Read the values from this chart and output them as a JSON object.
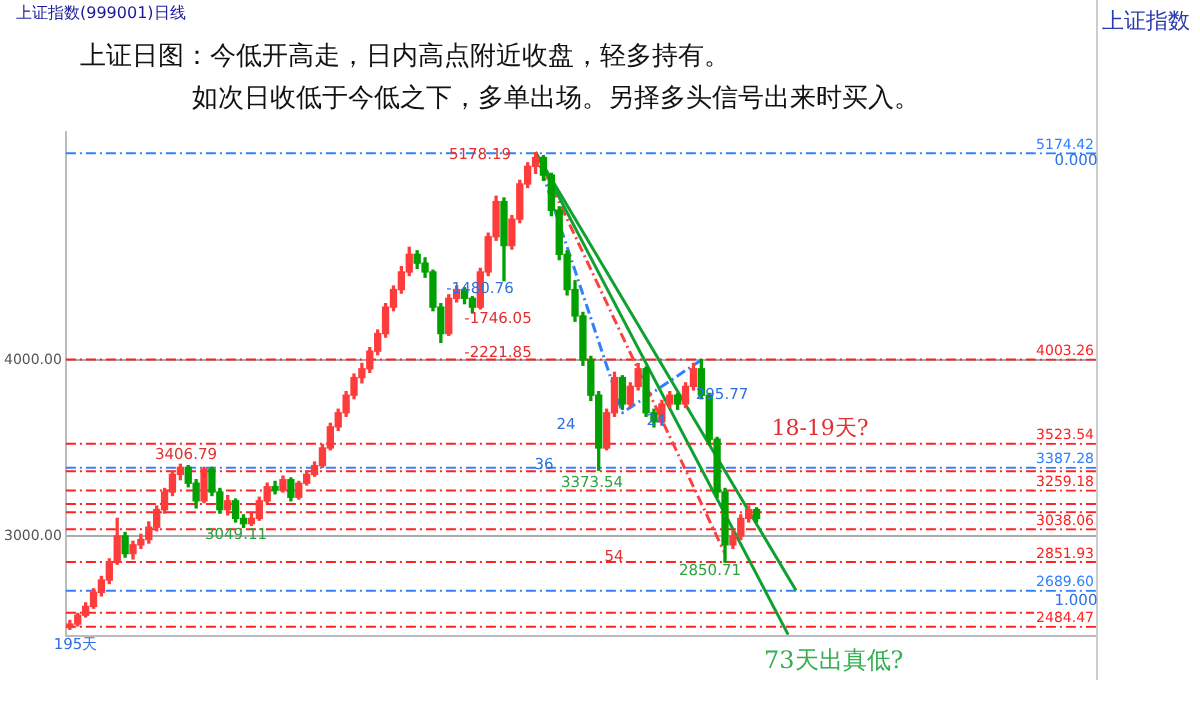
{
  "chart_data": {
    "type": "candlestick",
    "title": "上证日图：今低开高走，日内高点附近收盘，轻多持有。",
    "subtitle": "如次日收低于今低之下，多单出场。另择多头信号出来时买入。",
    "categories": [
      null,
      null,
      null,
      null,
      null,
      null,
      null,
      null,
      null,
      null,
      null,
      null,
      null,
      null,
      null,
      null,
      null,
      null,
      null,
      null,
      null,
      null,
      null,
      null,
      null,
      null,
      null,
      null,
      null,
      null,
      null,
      null,
      null,
      null,
      null,
      null,
      null,
      null,
      null,
      null,
      null,
      null,
      null,
      null,
      null,
      null,
      null,
      null,
      null,
      null,
      null,
      null,
      null,
      null,
      null,
      null,
      null,
      null,
      null,
      null,
      null,
      null,
      null,
      null,
      null,
      null,
      null,
      null,
      null,
      null,
      null,
      null,
      null,
      null,
      null,
      null,
      null,
      null,
      null,
      null,
      null,
      null,
      null,
      null,
      null,
      null,
      null,
      null,
      null,
      null,
      null,
      null,
      null
    ],
    "ohlc": [
      [
        2480,
        2520,
        2470,
        2500
      ],
      [
        2500,
        2560,
        2490,
        2550
      ],
      [
        2550,
        2620,
        2540,
        2600
      ],
      [
        2600,
        2700,
        2590,
        2680
      ],
      [
        2680,
        2770,
        2660,
        2750
      ],
      [
        2750,
        2870,
        2730,
        2850
      ],
      [
        2850,
        3100,
        2840,
        3000
      ],
      [
        3000,
        3020,
        2880,
        2900
      ],
      [
        2900,
        2970,
        2870,
        2950
      ],
      [
        2950,
        3010,
        2930,
        2980
      ],
      [
        2980,
        3080,
        2960,
        3050
      ],
      [
        3050,
        3170,
        3030,
        3150
      ],
      [
        3150,
        3270,
        3130,
        3250
      ],
      [
        3250,
        3370,
        3230,
        3350
      ],
      [
        3350,
        3407,
        3320,
        3390
      ],
      [
        3390,
        3400,
        3280,
        3300
      ],
      [
        3300,
        3320,
        3160,
        3200
      ],
      [
        3200,
        3390,
        3190,
        3380
      ],
      [
        3380,
        3390,
        3230,
        3250
      ],
      [
        3250,
        3270,
        3130,
        3150
      ],
      [
        3150,
        3230,
        3120,
        3200
      ],
      [
        3200,
        3210,
        3080,
        3100
      ],
      [
        3100,
        3120,
        3049,
        3070
      ],
      [
        3070,
        3130,
        3060,
        3100
      ],
      [
        3100,
        3220,
        3090,
        3200
      ],
      [
        3200,
        3300,
        3190,
        3280
      ],
      [
        3280,
        3310,
        3240,
        3260
      ],
      [
        3260,
        3340,
        3250,
        3320
      ],
      [
        3320,
        3330,
        3200,
        3220
      ],
      [
        3220,
        3310,
        3210,
        3300
      ],
      [
        3300,
        3370,
        3290,
        3350
      ],
      [
        3350,
        3420,
        3340,
        3400
      ],
      [
        3400,
        3520,
        3390,
        3500
      ],
      [
        3500,
        3640,
        3490,
        3620
      ],
      [
        3620,
        3720,
        3600,
        3700
      ],
      [
        3700,
        3820,
        3680,
        3800
      ],
      [
        3800,
        3920,
        3780,
        3900
      ],
      [
        3900,
        3980,
        3870,
        3950
      ],
      [
        3950,
        4070,
        3930,
        4050
      ],
      [
        4050,
        4170,
        4030,
        4150
      ],
      [
        4150,
        4320,
        4130,
        4300
      ],
      [
        4300,
        4420,
        4280,
        4400
      ],
      [
        4400,
        4530,
        4380,
        4500
      ],
      [
        4500,
        4640,
        4480,
        4600
      ],
      [
        4600,
        4620,
        4520,
        4550
      ],
      [
        4550,
        4580,
        4470,
        4500
      ],
      [
        4500,
        4510,
        4280,
        4300
      ],
      [
        4300,
        4320,
        4100,
        4150
      ],
      [
        4150,
        4370,
        4140,
        4350
      ],
      [
        4350,
        4420,
        4330,
        4400
      ],
      [
        4400,
        4410,
        4320,
        4350
      ],
      [
        4350,
        4360,
        4270,
        4300
      ],
      [
        4300,
        4520,
        4290,
        4500
      ],
      [
        4500,
        4720,
        4480,
        4700
      ],
      [
        4700,
        4930,
        4680,
        4900
      ],
      [
        4900,
        4920,
        4450,
        4650
      ],
      [
        4650,
        4820,
        4630,
        4800
      ],
      [
        4800,
        5020,
        4780,
        5000
      ],
      [
        5000,
        5120,
        4980,
        5100
      ],
      [
        5100,
        5178,
        5060,
        5150
      ],
      [
        5150,
        5160,
        5020,
        5050
      ],
      [
        5050,
        5060,
        4820,
        4850
      ],
      [
        4850,
        4870,
        4570,
        4600
      ],
      [
        4600,
        4620,
        4370,
        4400
      ],
      [
        4400,
        4450,
        4220,
        4250
      ],
      [
        4250,
        4270,
        3970,
        4000
      ],
      [
        4000,
        4020,
        3770,
        3800
      ],
      [
        3800,
        3820,
        3374,
        3500
      ],
      [
        3500,
        3720,
        3490,
        3700
      ],
      [
        3700,
        3930,
        3680,
        3900
      ],
      [
        3900,
        3910,
        3720,
        3750
      ],
      [
        3750,
        3870,
        3730,
        3850
      ],
      [
        3850,
        3980,
        3830,
        3950
      ],
      [
        3950,
        3960,
        3680,
        3700
      ],
      [
        3700,
        3720,
        3620,
        3650
      ],
      [
        3650,
        3770,
        3630,
        3750
      ],
      [
        3750,
        3820,
        3730,
        3800
      ],
      [
        3800,
        3810,
        3720,
        3750
      ],
      [
        3750,
        3870,
        3730,
        3850
      ],
      [
        3850,
        3980,
        3830,
        3950
      ],
      [
        3950,
        4003,
        3780,
        3800
      ],
      [
        3800,
        3810,
        3520,
        3550
      ],
      [
        3550,
        3560,
        3220,
        3250
      ],
      [
        3250,
        3270,
        2851,
        2950
      ],
      [
        2950,
        3030,
        2930,
        3000
      ],
      [
        3000,
        3120,
        2980,
        3100
      ],
      [
        3100,
        3170,
        3080,
        3150
      ],
      [
        3150,
        3160,
        3080,
        3100
      ],
      null,
      null,
      null,
      null,
      null
    ],
    "colors": [
      "#ff3c3c",
      "#ff3c3c",
      "#ff3c3c",
      "#ff3c3c",
      "#ff3c3c",
      "#ff3c3c",
      "#ff3c3c",
      "#00a000",
      "#ff3c3c",
      "#ff3c3c",
      "#ff3c3c",
      "#ff3c3c",
      "#ff3c3c",
      "#ff3c3c",
      "#ff3c3c",
      "#00a000",
      "#00a000",
      "#ff3c3c",
      "#00a000",
      "#00a000",
      "#ff3c3c",
      "#00a000",
      "#00a000",
      "#ff3c3c",
      "#ff3c3c",
      "#ff3c3c",
      "#00a000",
      "#ff3c3c",
      "#00a000",
      "#ff3c3c",
      "#ff3c3c",
      "#ff3c3c",
      "#ff3c3c",
      "#ff3c3c",
      "#ff3c3c",
      "#ff3c3c",
      "#ff3c3c",
      "#ff3c3c",
      "#ff3c3c",
      "#ff3c3c",
      "#ff3c3c",
      "#ff3c3c",
      "#ff3c3c",
      "#ff3c3c",
      "#00a000",
      "#00a000",
      "#00a000",
      "#00a000",
      "#ff3c3c",
      "#ff3c3c",
      "#00a000",
      "#00a000",
      "#ff3c3c",
      "#ff3c3c",
      "#ff3c3c",
      "#00a000",
      "#ff3c3c",
      "#ff3c3c",
      "#ff3c3c",
      "#ff3c3c",
      "#00a000",
      "#00a000",
      "#00a000",
      "#00a000",
      "#00a000",
      "#00a000",
      "#00a000",
      "#00a000",
      "#ff3c3c",
      "#ff3c3c",
      "#00a000",
      "#ff3c3c",
      "#ff3c3c",
      "#00a000",
      "#00a000",
      "#ff3c3c",
      "#ff3c3c",
      "#00a000",
      "#ff3c3c",
      "#ff3c3c",
      "#00a000",
      "#00a000",
      "#00a000",
      "#00a000",
      "#ff3c3c",
      "#ff3c3c",
      "#ff3c3c",
      "#00a000",
      null,
      null,
      null,
      null,
      null
    ],
    "series": [
      {
        "type": "line",
        "values": [
          null,
          null,
          null,
          null,
          null,
          null,
          null,
          null,
          null,
          null,
          null,
          null,
          null,
          null,
          null,
          null,
          null,
          null,
          null,
          null,
          null,
          null,
          null,
          null,
          null,
          null,
          null,
          null,
          null,
          null,
          null,
          null,
          null,
          null,
          null,
          null,
          null,
          null,
          null,
          null,
          null,
          null,
          null,
          null,
          null,
          null,
          null,
          null,
          null,
          null,
          null,
          null,
          null,
          null,
          null,
          null,
          null,
          null,
          null,
          5180,
          null,
          null,
          null,
          null,
          null,
          null,
          null,
          null,
          null,
          null,
          null,
          null,
          null,
          null,
          null,
          null,
          null,
          null,
          null,
          null,
          null,
          null,
          null,
          null,
          null,
          null,
          null,
          null,
          null,
          null,
          null,
          null,
          2690
        ],
        "color": "#10a030",
        "line_style": "solid"
      },
      {
        "type": "line",
        "values": [
          null,
          null,
          null,
          null,
          null,
          null,
          null,
          null,
          null,
          null,
          null,
          null,
          null,
          null,
          null,
          null,
          null,
          null,
          null,
          null,
          null,
          null,
          null,
          null,
          null,
          null,
          null,
          null,
          null,
          null,
          null,
          null,
          null,
          null,
          null,
          null,
          null,
          null,
          null,
          null,
          null,
          null,
          null,
          null,
          null,
          null,
          null,
          null,
          null,
          null,
          null,
          null,
          null,
          null,
          null,
          null,
          null,
          null,
          null,
          5180,
          null,
          null,
          null,
          null,
          null,
          null,
          null,
          null,
          null,
          null,
          null,
          null,
          null,
          null,
          null,
          null,
          null,
          null,
          null,
          null,
          null,
          null,
          null,
          null,
          null,
          null,
          null,
          null,
          null,
          null,
          null,
          2440,
          null
        ],
        "color": "#10a030",
        "line_style": "solid"
      },
      {
        "type": "line",
        "values": [
          null,
          null,
          null,
          null,
          null,
          null,
          null,
          null,
          null,
          null,
          null,
          null,
          null,
          null,
          null,
          null,
          null,
          null,
          null,
          null,
          null,
          null,
          null,
          null,
          null,
          null,
          null,
          null,
          null,
          null,
          null,
          null,
          null,
          null,
          null,
          null,
          null,
          null,
          null,
          null,
          null,
          null,
          null,
          null,
          null,
          null,
          null,
          null,
          null,
          null,
          null,
          null,
          null,
          null,
          null,
          null,
          null,
          null,
          null,
          5180,
          null,
          null,
          null,
          null,
          null,
          null,
          null,
          null,
          null,
          null,
          null,
          null,
          null,
          null,
          null,
          null,
          null,
          null,
          null,
          null,
          null,
          null,
          null,
          2900,
          null,
          null,
          null,
          null,
          null,
          null,
          null,
          null,
          null
        ],
        "color": "#ff4040",
        "line_style": "dashed"
      },
      {
        "type": "line",
        "values": [
          null,
          null,
          null,
          null,
          null,
          null,
          null,
          null,
          null,
          null,
          null,
          null,
          null,
          null,
          null,
          null,
          null,
          null,
          null,
          null,
          null,
          null,
          null,
          null,
          null,
          null,
          null,
          null,
          null,
          null,
          null,
          null,
          null,
          null,
          null,
          null,
          null,
          null,
          null,
          null,
          null,
          null,
          null,
          null,
          null,
          null,
          null,
          null,
          null,
          null,
          null,
          null,
          null,
          null,
          null,
          null,
          null,
          null,
          null,
          5180,
          null,
          null,
          null,
          null,
          null,
          null,
          null,
          null,
          null,
          null,
          3700,
          null,
          null,
          null,
          null,
          null,
          null,
          null,
          null,
          null,
          4000,
          null,
          null,
          null,
          null,
          null,
          null,
          null,
          null,
          null,
          null,
          null,
          null
        ],
        "color": "#3080ff",
        "line_style": "dashed"
      }
    ],
    "ylim": [
      2432,
      5295
    ],
    "yticks": [
      {
        "value": 3000,
        "label": "3000.00"
      },
      {
        "value": 4000,
        "label": "4000.00"
      }
    ],
    "tick_labels": "y",
    "grid": "y",
    "legend": false,
    "ref_lines": [
      {
        "axis": "y",
        "value": 5174.42,
        "label": "5174.42",
        "color": "#3080ff",
        "line_style": "dashed"
      },
      {
        "axis": "y",
        "value": 4003.26,
        "label": "4003.26",
        "color": "#ff2020",
        "line_style": "dashed"
      },
      {
        "axis": "y",
        "value": 3523.54,
        "label": "3523.54",
        "color": "#ff2020",
        "line_style": "dashed"
      },
      {
        "axis": "y",
        "value": 3387.28,
        "label": "3387.28",
        "color": "#3080ff",
        "line_style": "dashed"
      },
      {
        "axis": "y",
        "value": 3367.64,
        "color": "#ff2020",
        "line_style": "dashed"
      },
      {
        "axis": "y",
        "value": 3259.18,
        "label": "3259.18",
        "color": "#ff2020",
        "line_style": "dashed"
      },
      {
        "axis": "y",
        "value": 3181.4,
        "color": "#ff2020",
        "line_style": "dashed"
      },
      {
        "axis": "y",
        "value": 3134.46,
        "color": "#ff2020",
        "line_style": "dashed"
      },
      {
        "axis": "y",
        "value": 3038.06,
        "label": "3038.06",
        "color": "#ff2020",
        "line_style": "dashed"
      },
      {
        "axis": "y",
        "value": 2851.93,
        "label": "2851.93",
        "color": "#ff2020",
        "line_style": "dashed"
      },
      {
        "axis": "y",
        "value": 2689.6,
        "label": "2689.60",
        "color": "#3080ff",
        "line_style": "dashed"
      },
      {
        "axis": "y",
        "value": 2564.16,
        "color": "#ff2020",
        "line_style": "dashed"
      },
      {
        "axis": "y",
        "value": 2484.47,
        "label": "2484.47",
        "color": "#ff2020",
        "line_style": "dashed"
      }
    ],
    "annotations": [
      "上证指数(999001)日线",
      "上证指数",
      "73天出真低?",
      "5178.19",
      "3406.79",
      "3049.11",
      "-1480.76",
      "-1746.05",
      "-2221.85",
      "3373.54",
      "24",
      "24",
      "36",
      "54",
      "295.77",
      "2850.71",
      "18-19天?",
      "195天",
      "0.000",
      "1.000"
    ]
  }
}
